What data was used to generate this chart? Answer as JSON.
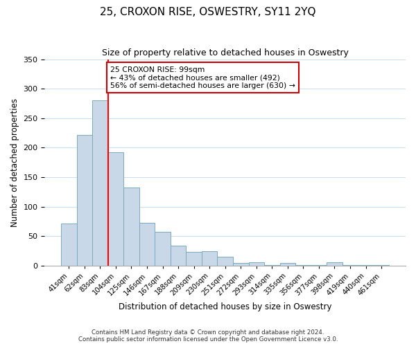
{
  "title": "25, CROXON RISE, OSWESTRY, SY11 2YQ",
  "subtitle": "Size of property relative to detached houses in Oswestry",
  "xlabel": "Distribution of detached houses by size in Oswestry",
  "ylabel": "Number of detached properties",
  "bar_labels": [
    "41sqm",
    "62sqm",
    "83sqm",
    "104sqm",
    "125sqm",
    "146sqm",
    "167sqm",
    "188sqm",
    "209sqm",
    "230sqm",
    "251sqm",
    "272sqm",
    "293sqm",
    "314sqm",
    "335sqm",
    "356sqm",
    "377sqm",
    "398sqm",
    "419sqm",
    "440sqm",
    "461sqm"
  ],
  "bar_values": [
    71,
    222,
    280,
    192,
    133,
    73,
    58,
    34,
    24,
    25,
    15,
    5,
    6,
    1,
    5,
    1,
    1,
    6,
    1,
    1,
    1
  ],
  "bar_color": "#c8d8e8",
  "bar_edge_color": "#7aaabb",
  "vline_color": "red",
  "ylim": [
    0,
    350
  ],
  "yticks": [
    0,
    50,
    100,
    150,
    200,
    250,
    300,
    350
  ],
  "annotation_text": "25 CROXON RISE: 99sqm\n← 43% of detached houses are smaller (492)\n56% of semi-detached houses are larger (630) →",
  "annotation_box_color": "white",
  "annotation_box_edge": "#cc0000",
  "footer_line1": "Contains HM Land Registry data © Crown copyright and database right 2024.",
  "footer_line2": "Contains public sector information licensed under the Open Government Licence v3.0."
}
